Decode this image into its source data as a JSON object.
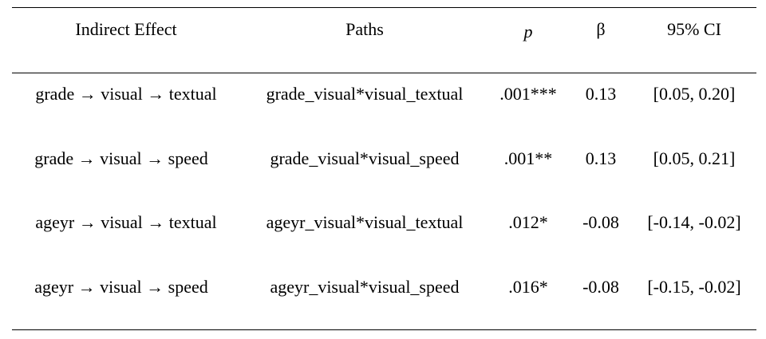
{
  "table": {
    "headers": [
      "Indirect Effect",
      "Paths",
      "p",
      "β",
      "95% CI"
    ],
    "rows": [
      {
        "effect": "grade → visual → textual",
        "paths": "grade_visual*visual_textual",
        "p": ".001***",
        "beta": "0.13",
        "ci": "[0.05, 0.20]"
      },
      {
        "effect": "grade → visual → speed",
        "paths": "grade_visual*visual_speed",
        "p": ".001**",
        "beta": "0.13",
        "ci": "[0.05, 0.21]"
      },
      {
        "effect": "ageyr → visual → textual",
        "paths": "ageyr_visual*visual_textual",
        "p": ".012*",
        "beta": "-0.08",
        "ci": "[-0.14, -0.02]"
      },
      {
        "effect": "ageyr → visual → speed",
        "paths": "ageyr_visual*visual_speed",
        "p": ".016*",
        "beta": "-0.08",
        "ci": "[-0.15, -0.02]"
      }
    ]
  }
}
